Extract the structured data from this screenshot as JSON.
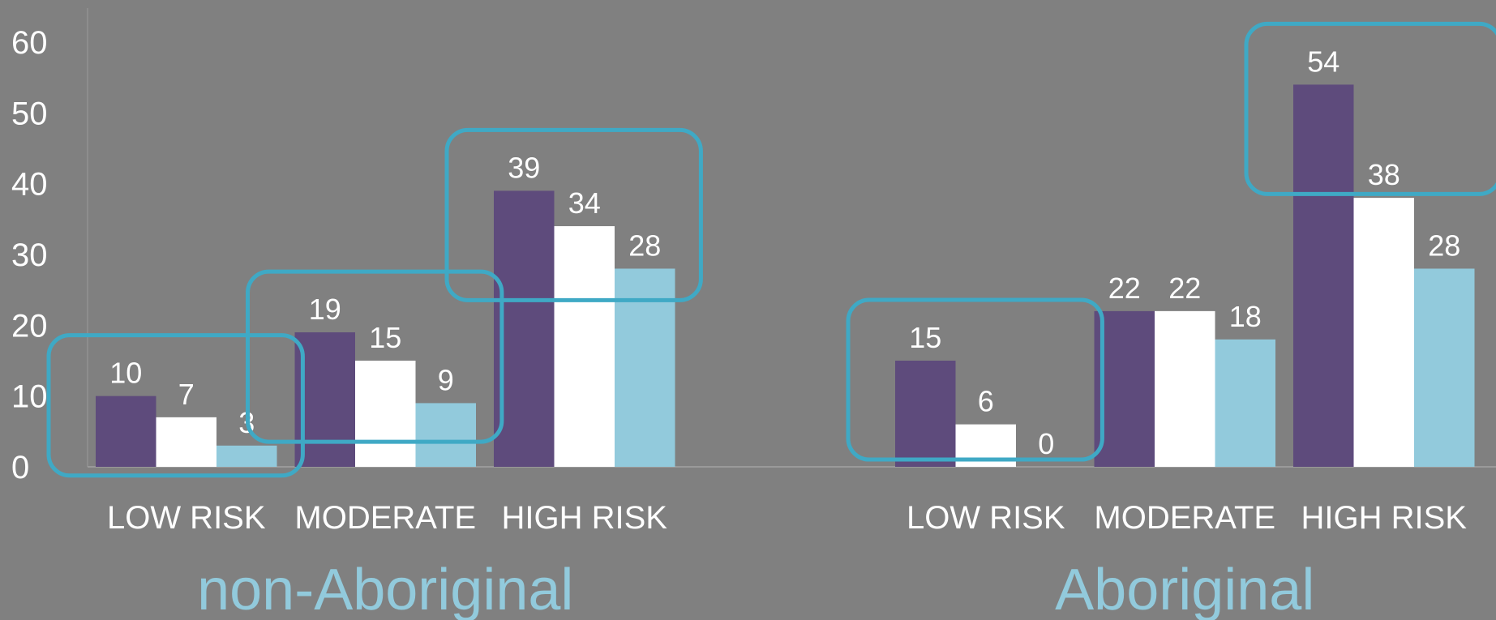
{
  "chart_data": {
    "type": "bar",
    "ylim": [
      0,
      60
    ],
    "yticks": [
      0,
      10,
      20,
      30,
      40,
      50,
      60
    ],
    "grid": false,
    "legend": "none",
    "colors": {
      "background": "#808080",
      "series": [
        "#5e4b7c",
        "#ffffff",
        "#92cadc"
      ],
      "highlight": "#3fa9c5",
      "group_label": "#92cadc",
      "axis": "#9a9a9a"
    },
    "groups": [
      {
        "label": "non-Aboriginal",
        "categories": [
          "LOW RISK",
          "MODERATE",
          "HIGH RISK"
        ],
        "series": [
          {
            "values": [
              10,
              19,
              39
            ]
          },
          {
            "values": [
              7,
              15,
              34
            ]
          },
          {
            "values": [
              3,
              9,
              28
            ]
          }
        ]
      },
      {
        "label": "Aboriginal",
        "categories": [
          "LOW RISK",
          "MODERATE",
          "HIGH RISK"
        ],
        "series": [
          {
            "values": [
              15,
              22,
              54
            ]
          },
          {
            "values": [
              6,
              22,
              38
            ]
          },
          {
            "values": [
              0,
              18,
              28
            ]
          }
        ]
      }
    ],
    "highlights": [
      {
        "group": 0,
        "category": 0
      },
      {
        "group": 0,
        "category": 1
      },
      {
        "group": 0,
        "category": 2
      },
      {
        "group": 1,
        "category": 0
      },
      {
        "group": 1,
        "category": 2
      }
    ]
  }
}
